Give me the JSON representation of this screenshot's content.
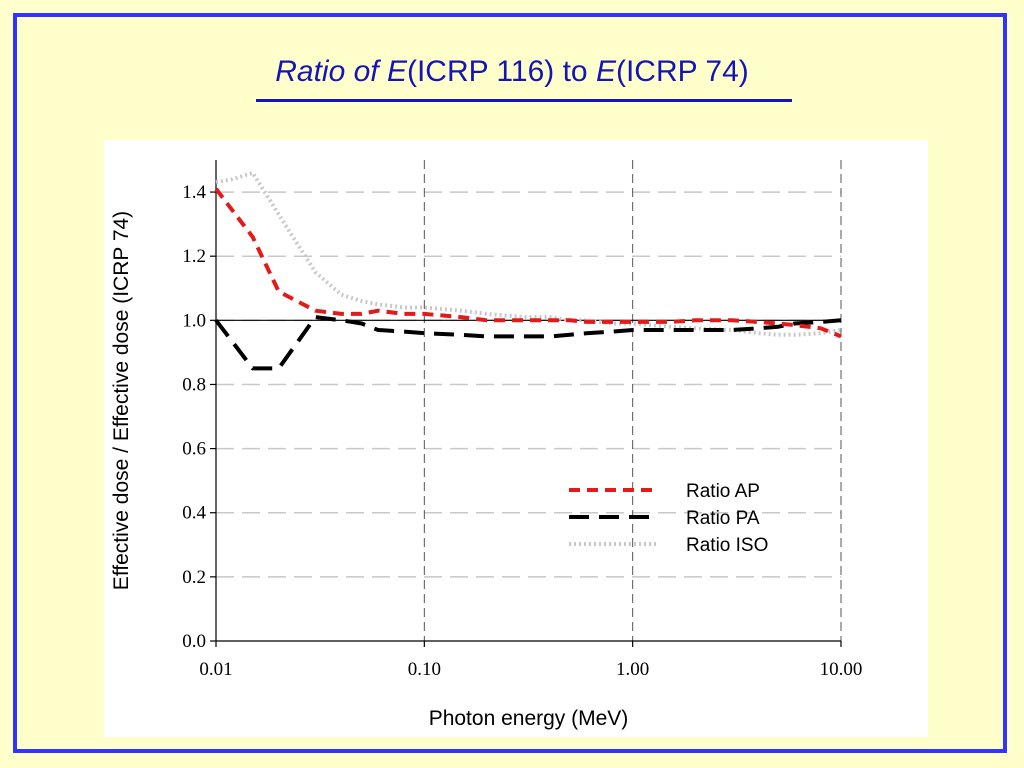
{
  "title": {
    "part1": "Ratio of ",
    "part2": "E",
    "part3": "(ICRP 116) to ",
    "part4": "E",
    "part5": "(ICRP 74)"
  },
  "colors": {
    "background": "#ffffcc",
    "frame": "#3333ff",
    "title": "#1414b8",
    "ap": "#e21a1a",
    "pa": "#000000",
    "iso": "#c8c8c8"
  },
  "chart_data": {
    "type": "line",
    "xlabel": "Photon energy (MeV)",
    "ylabel": "Effective dose / Effective dose (ICRP 74)",
    "x_scale": "log",
    "xlim": [
      0.01,
      10.0
    ],
    "ylim": [
      0.0,
      1.5
    ],
    "x_ticks": [
      0.01,
      0.1,
      1.0,
      10.0
    ],
    "x_tick_labels": [
      "0.01",
      "0.10",
      "1.00",
      "10.00"
    ],
    "y_ticks": [
      0.0,
      0.2,
      0.4,
      0.6,
      0.8,
      1.0,
      1.2,
      1.4
    ],
    "y_tick_labels": [
      "0.0",
      "0.2",
      "0.4",
      "0.6",
      "0.8",
      "1.0",
      "1.2",
      "1.4"
    ],
    "reference_line": 1.0,
    "grid": true,
    "legend_position": "lower-right",
    "series": [
      {
        "name": "Ratio AP",
        "style": "dashed",
        "x": [
          0.01,
          0.015,
          0.02,
          0.03,
          0.04,
          0.05,
          0.06,
          0.08,
          0.1,
          0.15,
          0.2,
          0.3,
          0.4,
          0.5,
          0.6,
          0.8,
          1.0,
          1.5,
          2.0,
          3.0,
          4.0,
          5.0,
          6.0,
          8.0,
          10.0
        ],
        "y": [
          1.41,
          1.26,
          1.09,
          1.03,
          1.02,
          1.02,
          1.03,
          1.02,
          1.02,
          1.01,
          1.0,
          1.0,
          1.0,
          1.0,
          0.995,
          0.995,
          0.995,
          0.995,
          1.0,
          1.0,
          0.995,
          0.99,
          0.985,
          0.975,
          0.95
        ]
      },
      {
        "name": "Ratio PA",
        "style": "long-dashed",
        "x": [
          0.01,
          0.015,
          0.02,
          0.03,
          0.04,
          0.05,
          0.06,
          0.08,
          0.1,
          0.15,
          0.2,
          0.3,
          0.4,
          0.5,
          0.6,
          0.8,
          1.0,
          1.5,
          2.0,
          3.0,
          4.0,
          5.0,
          6.0,
          8.0,
          10.0
        ],
        "y": [
          1.0,
          0.85,
          0.85,
          1.01,
          1.0,
          0.99,
          0.97,
          0.965,
          0.96,
          0.955,
          0.95,
          0.95,
          0.95,
          0.955,
          0.96,
          0.965,
          0.97,
          0.97,
          0.97,
          0.97,
          0.975,
          0.98,
          0.99,
          0.995,
          1.0
        ]
      },
      {
        "name": "Ratio ISO",
        "style": "dotted",
        "x": [
          0.01,
          0.012,
          0.015,
          0.02,
          0.03,
          0.04,
          0.05,
          0.06,
          0.08,
          0.1,
          0.15,
          0.2,
          0.3,
          0.4,
          0.5,
          0.6,
          0.8,
          1.0,
          1.5,
          2.0,
          3.0,
          4.0,
          5.0,
          6.0,
          8.0,
          10.0
        ],
        "y": [
          1.43,
          1.44,
          1.46,
          1.33,
          1.15,
          1.08,
          1.06,
          1.05,
          1.04,
          1.04,
          1.03,
          1.02,
          1.01,
          1.01,
          1.0,
          1.0,
          0.99,
          0.99,
          0.98,
          0.975,
          0.97,
          0.96,
          0.955,
          0.955,
          0.96,
          0.97
        ]
      }
    ]
  }
}
